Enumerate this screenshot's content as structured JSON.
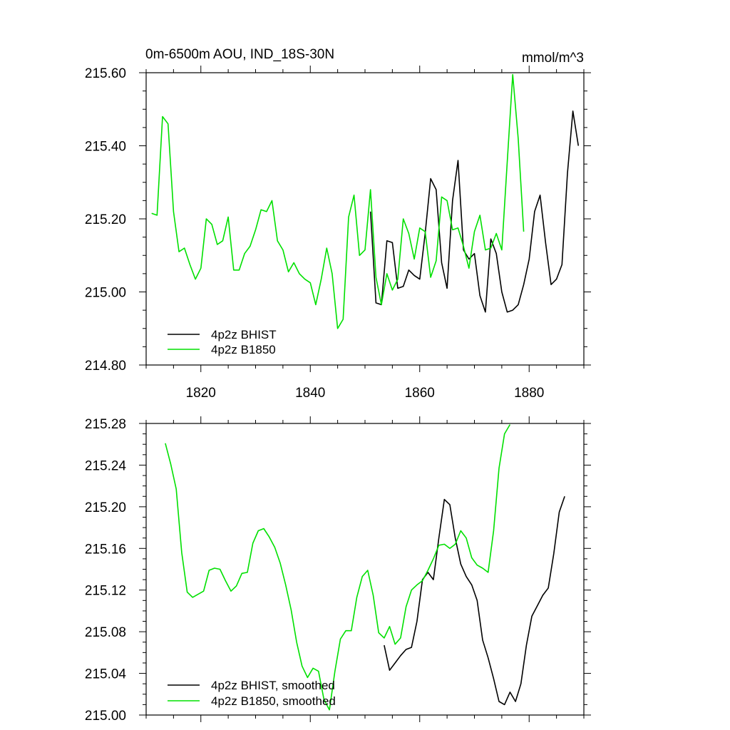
{
  "colors": {
    "bhist": "#000000",
    "b1850": "#00e000",
    "axis": "#000000"
  },
  "chart_data": [
    {
      "type": "line",
      "title": "0m-6500m AOU, IND_18S-30N",
      "units": "mmol/m^3",
      "xlabel": "",
      "ylabel": "",
      "xlim": [
        1810,
        1890
      ],
      "ylim": [
        214.8,
        215.6
      ],
      "x_ticks": [
        1820,
        1840,
        1860,
        1880
      ],
      "y_ticks": [
        214.8,
        215.0,
        215.2,
        215.4,
        215.6
      ],
      "y_tick_labels": [
        "214.80",
        "215.00",
        "215.20",
        "215.40",
        "215.60"
      ],
      "legend_position": "bottom-left",
      "series": [
        {
          "name": "4p2z BHIST",
          "color": "#000000",
          "x": [
            1851,
            1852,
            1853,
            1854,
            1855,
            1856,
            1857,
            1858,
            1859,
            1860,
            1861,
            1862,
            1863,
            1864,
            1865,
            1866,
            1867,
            1868,
            1869,
            1870,
            1871,
            1872,
            1873,
            1874,
            1875,
            1876,
            1877,
            1878,
            1879,
            1880,
            1881,
            1882,
            1883,
            1884,
            1885,
            1886,
            1887,
            1888,
            1889
          ],
          "values": [
            215.22,
            214.97,
            214.965,
            215.14,
            215.135,
            215.01,
            215.015,
            215.06,
            215.045,
            215.035,
            215.16,
            215.31,
            215.28,
            215.08,
            215.01,
            215.25,
            215.36,
            215.115,
            215.09,
            215.105,
            214.99,
            214.945,
            215.145,
            215.105,
            215.0,
            214.945,
            214.95,
            214.965,
            215.02,
            215.09,
            215.22,
            215.265,
            215.135,
            215.02,
            215.035,
            215.075,
            215.325,
            215.495,
            215.4
          ]
        },
        {
          "name": "4p2z B1850",
          "color": "#00e000",
          "x": [
            1811,
            1812,
            1813,
            1814,
            1815,
            1816,
            1817,
            1818,
            1819,
            1820,
            1821,
            1822,
            1823,
            1824,
            1825,
            1826,
            1827,
            1828,
            1829,
            1830,
            1831,
            1832,
            1833,
            1834,
            1835,
            1836,
            1837,
            1838,
            1839,
            1840,
            1841,
            1842,
            1843,
            1844,
            1845,
            1846,
            1847,
            1848,
            1849,
            1850,
            1851,
            1852,
            1853,
            1854,
            1855,
            1856,
            1857,
            1858,
            1859,
            1860,
            1861,
            1862,
            1863,
            1864,
            1865,
            1866,
            1867,
            1868,
            1869,
            1870,
            1871,
            1872,
            1873,
            1874,
            1875,
            1876,
            1877,
            1878,
            1879
          ],
          "values": [
            215.215,
            215.21,
            215.48,
            215.46,
            215.22,
            215.11,
            215.12,
            215.075,
            215.035,
            215.065,
            215.2,
            215.185,
            215.13,
            215.14,
            215.205,
            215.06,
            215.06,
            215.105,
            215.125,
            215.17,
            215.225,
            215.22,
            215.25,
            215.14,
            215.115,
            215.055,
            215.08,
            215.05,
            215.035,
            215.025,
            214.965,
            215.035,
            215.12,
            215.05,
            214.9,
            214.925,
            215.205,
            215.265,
            215.1,
            215.115,
            215.28,
            215.04,
            214.965,
            215.05,
            215.005,
            215.035,
            215.2,
            215.16,
            215.09,
            215.175,
            215.165,
            215.04,
            215.085,
            215.26,
            215.25,
            215.17,
            215.175,
            215.125,
            215.065,
            215.165,
            215.21,
            215.115,
            215.12,
            215.16,
            215.115,
            215.355,
            215.595,
            215.42,
            215.165
          ]
        }
      ]
    },
    {
      "type": "line",
      "title": "",
      "xlabel": "",
      "ylabel": "",
      "xlim": [
        1810,
        1890
      ],
      "ylim": [
        215.0,
        215.28
      ],
      "x_ticks": [
        1820,
        1840,
        1860,
        1880
      ],
      "y_ticks": [
        215.0,
        215.04,
        215.08,
        215.12,
        215.16,
        215.2,
        215.24,
        215.28
      ],
      "y_tick_labels": [
        "215.00",
        "215.04",
        "215.08",
        "215.12",
        "215.16",
        "215.20",
        "215.24",
        "215.28"
      ],
      "legend_position": "bottom-left",
      "series": [
        {
          "name": "4p2z BHIST, smoothed",
          "color": "#000000",
          "x": [
            1853.5,
            1854.5,
            1855.5,
            1856.5,
            1857.5,
            1858.5,
            1859.5,
            1860.5,
            1861.5,
            1862.5,
            1863.5,
            1864.5,
            1865.5,
            1866.5,
            1867.5,
            1868.5,
            1869.5,
            1870.5,
            1871.5,
            1872.5,
            1873.5,
            1874.5,
            1875.5,
            1876.5,
            1877.5,
            1878.5,
            1879.5,
            1880.5,
            1881.5,
            1882.5,
            1883.5,
            1884.5,
            1885.5,
            1886.5
          ],
          "values": [
            215.067,
            215.043,
            215.05,
            215.057,
            215.063,
            215.065,
            215.09,
            215.13,
            215.137,
            215.13,
            215.17,
            215.207,
            215.202,
            215.17,
            215.145,
            215.133,
            215.125,
            215.11,
            215.072,
            215.055,
            215.035,
            215.013,
            215.01,
            215.022,
            215.013,
            215.03,
            215.067,
            215.095,
            215.105,
            215.115,
            215.122,
            215.155,
            215.195,
            215.21
          ]
        },
        {
          "name": "4p2z B1850, smoothed",
          "color": "#00e000",
          "x": [
            1813.5,
            1814.5,
            1815.5,
            1816.5,
            1817.5,
            1818.5,
            1819.5,
            1820.5,
            1821.5,
            1822.5,
            1823.5,
            1824.5,
            1825.5,
            1826.5,
            1827.5,
            1828.5,
            1829.5,
            1830.5,
            1831.5,
            1832.5,
            1833.5,
            1834.5,
            1835.5,
            1836.5,
            1837.5,
            1838.5,
            1839.5,
            1840.5,
            1841.5,
            1842.5,
            1843.5,
            1844.5,
            1845.5,
            1846.5,
            1847.5,
            1848.5,
            1849.5,
            1850.5,
            1851.5,
            1852.5,
            1853.5,
            1854.5,
            1855.5,
            1856.5,
            1857.5,
            1858.5,
            1859.5,
            1860.5,
            1861.5,
            1862.5,
            1863.5,
            1864.5,
            1865.5,
            1866.5,
            1867.5,
            1868.5,
            1869.5,
            1870.5,
            1871.5,
            1872.5,
            1873.5,
            1874.5,
            1875.5,
            1876.5
          ],
          "values": [
            215.261,
            215.241,
            215.217,
            215.156,
            215.118,
            215.113,
            215.116,
            215.119,
            215.139,
            215.141,
            215.14,
            215.129,
            215.119,
            215.124,
            215.136,
            215.137,
            215.165,
            215.177,
            215.179,
            215.171,
            215.161,
            215.146,
            215.125,
            215.101,
            215.07,
            215.047,
            215.036,
            215.045,
            215.042,
            215.015,
            215.005,
            215.042,
            215.073,
            215.081,
            215.081,
            215.113,
            215.133,
            215.139,
            215.115,
            215.079,
            215.074,
            215.085,
            215.068,
            215.074,
            215.104,
            215.12,
            215.125,
            215.129,
            215.139,
            215.15,
            215.163,
            215.164,
            215.16,
            215.164,
            215.177,
            215.17,
            215.151,
            215.144,
            215.141,
            215.137,
            215.177,
            215.237,
            215.27,
            215.279
          ]
        }
      ]
    }
  ]
}
